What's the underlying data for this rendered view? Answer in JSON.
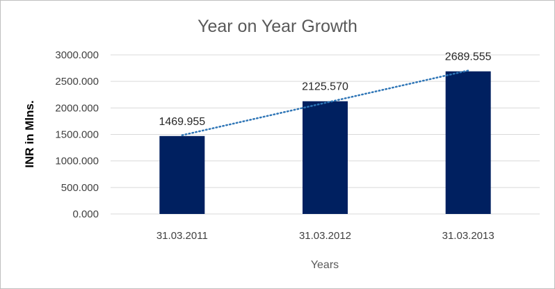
{
  "chart_data": {
    "type": "bar",
    "title": "Year on Year Growth",
    "xlabel": "Years",
    "ylabel": "INR in Mlns.",
    "categories": [
      "31.03.2011",
      "31.03.2012",
      "31.03.2013"
    ],
    "values": [
      1469.955,
      2125.57,
      2689.555
    ],
    "value_labels": [
      "1469.955",
      "2125.570",
      "2689.555"
    ],
    "y_ticks": [
      "0.000",
      "500.000",
      "1000.000",
      "1500.000",
      "2000.000",
      "2500.000",
      "3000.000"
    ],
    "ylim": [
      0,
      3000
    ],
    "y_tick_step": 500,
    "grid": true,
    "legend": "none",
    "trendline": "linear",
    "colors": {
      "bar": "#002060",
      "trendline": "#2e75b6",
      "grid": "#d9d9d9"
    }
  }
}
